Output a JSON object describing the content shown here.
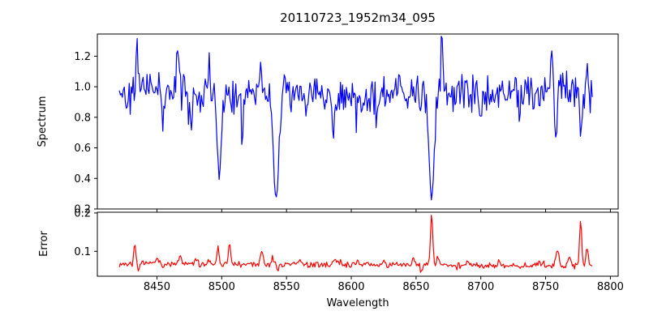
{
  "chart_data": {
    "type": "line",
    "title": "20110723_1952m34_095",
    "xlabel": "Wavelength",
    "grid": false,
    "legend": "none",
    "axes_color": "#000000",
    "background_color": "#ffffff",
    "x_range": [
      8421,
      8786
    ],
    "xlim": [
      8404,
      8806
    ],
    "x_ticks": [
      8450,
      8500,
      8550,
      8600,
      8650,
      8700,
      8750,
      8800
    ],
    "x_tick_labels": [
      "8450",
      "8500",
      "8550",
      "8600",
      "8650",
      "8700",
      "8750",
      "8800"
    ],
    "n_points": 480,
    "panels": [
      {
        "name": "spectrum",
        "ylabel": "Spectrum",
        "ylim": [
          0.2,
          1.345
        ],
        "y_ticks": [
          0.2,
          0.4,
          0.6,
          0.8,
          1.0,
          1.2
        ],
        "y_tick_labels": [
          "0.2",
          "0.4",
          "0.6",
          "0.8",
          "1.0",
          "1.2"
        ],
        "color": "#0000ff",
        "line_width": 1.2,
        "seed": 42,
        "baseline": 0.95,
        "noise_amp": 0.07,
        "clip": [
          0.24,
          1.33
        ],
        "absorption_lines": [
          {
            "center": 8498,
            "depth": 0.58,
            "sigma": 1.6
          },
          {
            "center": 8542,
            "depth": 0.73,
            "sigma": 2.0
          },
          {
            "center": 8662,
            "depth": 0.73,
            "sigma": 2.0
          }
        ],
        "features": [
          {
            "center": 8435,
            "height": 0.3,
            "sigma": 0.8
          },
          {
            "center": 8455,
            "height": -0.2,
            "sigma": 0.8
          },
          {
            "center": 8466,
            "height": 0.32,
            "sigma": 0.8
          },
          {
            "center": 8476,
            "height": -0.22,
            "sigma": 0.8
          },
          {
            "center": 8490,
            "height": 0.25,
            "sigma": 0.8
          },
          {
            "center": 8516,
            "height": -0.2,
            "sigma": 0.8
          },
          {
            "center": 8530,
            "height": 0.18,
            "sigma": 0.8
          },
          {
            "center": 8586,
            "height": -0.18,
            "sigma": 0.8
          },
          {
            "center": 8620,
            "height": -0.15,
            "sigma": 0.8
          },
          {
            "center": 8670,
            "height": 0.35,
            "sigma": 0.8
          },
          {
            "center": 8700,
            "height": -0.18,
            "sigma": 0.8
          },
          {
            "center": 8730,
            "height": -0.2,
            "sigma": 0.9
          },
          {
            "center": 8755,
            "height": 0.25,
            "sigma": 0.8
          },
          {
            "center": 8758,
            "height": -0.3,
            "sigma": 0.9
          },
          {
            "center": 8777,
            "height": -0.26,
            "sigma": 0.9
          },
          {
            "center": 8782,
            "height": 0.15,
            "sigma": 0.8
          }
        ]
      },
      {
        "name": "error",
        "ylabel": "Error",
        "ylim": [
          0.035,
          0.202
        ],
        "y_ticks": [
          0.1,
          0.2
        ],
        "y_tick_labels": [
          "0.1",
          "0.2"
        ],
        "color": "#ff0000",
        "line_width": 1.2,
        "seed": 7,
        "baseline": 0.0645,
        "baseline_slope": -1.3e-05,
        "noise_amp": 0.0045,
        "clip": [
          0.044,
          0.2
        ],
        "absorption_lines": [],
        "features": [
          {
            "center": 8433,
            "height": 0.05,
            "sigma": 0.9
          },
          {
            "center": 8436,
            "height": -0.018,
            "sigma": 0.7
          },
          {
            "center": 8450,
            "height": 0.012,
            "sigma": 1.5
          },
          {
            "center": 8468,
            "height": 0.022,
            "sigma": 0.9
          },
          {
            "center": 8480,
            "height": 0.012,
            "sigma": 1.2
          },
          {
            "center": 8490,
            "height": 0.014,
            "sigma": 1.0
          },
          {
            "center": 8497,
            "height": 0.046,
            "sigma": 0.9
          },
          {
            "center": 8506,
            "height": 0.055,
            "sigma": 0.8
          },
          {
            "center": 8531,
            "height": 0.034,
            "sigma": 1.0
          },
          {
            "center": 8539,
            "height": 0.024,
            "sigma": 0.8
          },
          {
            "center": 8543,
            "height": -0.02,
            "sigma": 0.7
          },
          {
            "center": 8560,
            "height": 0.01,
            "sigma": 1.5
          },
          {
            "center": 8588,
            "height": 0.014,
            "sigma": 1.5
          },
          {
            "center": 8605,
            "height": 0.012,
            "sigma": 1.5
          },
          {
            "center": 8625,
            "height": 0.01,
            "sigma": 1.2
          },
          {
            "center": 8648,
            "height": 0.018,
            "sigma": 1.0
          },
          {
            "center": 8654,
            "height": -0.02,
            "sigma": 0.7
          },
          {
            "center": 8662,
            "height": 0.134,
            "sigma": 0.9
          },
          {
            "center": 8667,
            "height": 0.026,
            "sigma": 0.8
          },
          {
            "center": 8690,
            "height": 0.01,
            "sigma": 1.2
          },
          {
            "center": 8714,
            "height": 0.01,
            "sigma": 1.2
          },
          {
            "center": 8745,
            "height": 0.012,
            "sigma": 1.2
          },
          {
            "center": 8759,
            "height": 0.04,
            "sigma": 1.2
          },
          {
            "center": 8768,
            "height": 0.028,
            "sigma": 1.0
          },
          {
            "center": 8777,
            "height": 0.122,
            "sigma": 0.8
          },
          {
            "center": 8782,
            "height": 0.045,
            "sigma": 0.8
          }
        ]
      }
    ]
  }
}
